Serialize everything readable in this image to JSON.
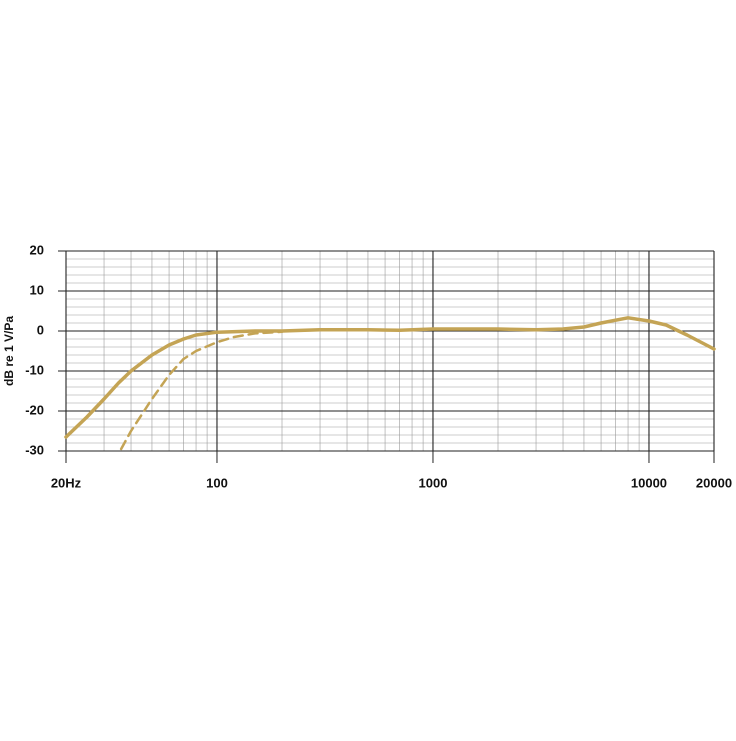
{
  "chart_data": {
    "type": "line",
    "y_label": "dB re 1 V/Pa",
    "xscale": "log",
    "xlim": [
      20,
      20000
    ],
    "ylim": [
      -30,
      20
    ],
    "xticks": [
      {
        "value": 20,
        "label": "20Hz"
      },
      100,
      1000,
      10000,
      20000
    ],
    "yticks": [
      -30,
      -20,
      -10,
      0,
      10,
      20
    ],
    "minor_xticks": [
      30,
      40,
      50,
      60,
      70,
      80,
      90,
      200,
      300,
      400,
      500,
      600,
      700,
      800,
      900,
      2000,
      3000,
      4000,
      5000,
      6000,
      7000,
      8000,
      9000
    ],
    "minor_yticks": [
      -28,
      -26,
      -24,
      -22,
      -18,
      -16,
      -14,
      -12,
      -8,
      -6,
      -4,
      -2,
      2,
      4,
      6,
      8,
      12,
      14,
      16,
      18
    ],
    "grid": true,
    "series": [
      {
        "color": "#c4a455",
        "dash": false,
        "x": [
          20,
          25,
          30,
          35,
          40,
          50,
          60,
          70,
          80,
          100,
          150,
          200,
          300,
          500,
          700,
          1000,
          2000,
          3000,
          4000,
          5000,
          6000,
          8000,
          10000,
          12000,
          15000,
          20000
        ],
        "values": [
          -26.5,
          -21.5,
          -17,
          -13,
          -10,
          -6,
          -3.5,
          -2,
          -1,
          -0.3,
          0,
          0,
          0.3,
          0.3,
          0.2,
          0.5,
          0.5,
          0.3,
          0.5,
          1,
          2,
          3.3,
          2.5,
          1.5,
          -1,
          -4.5
        ]
      },
      {
        "color": "#c4a455",
        "dash": true,
        "x": [
          36,
          40,
          50,
          60,
          70,
          80,
          100,
          120,
          150,
          200
        ],
        "values": [
          -29.5,
          -25,
          -17,
          -11,
          -7,
          -5,
          -2.8,
          -1.5,
          -0.6,
          -0.2
        ]
      }
    ]
  }
}
